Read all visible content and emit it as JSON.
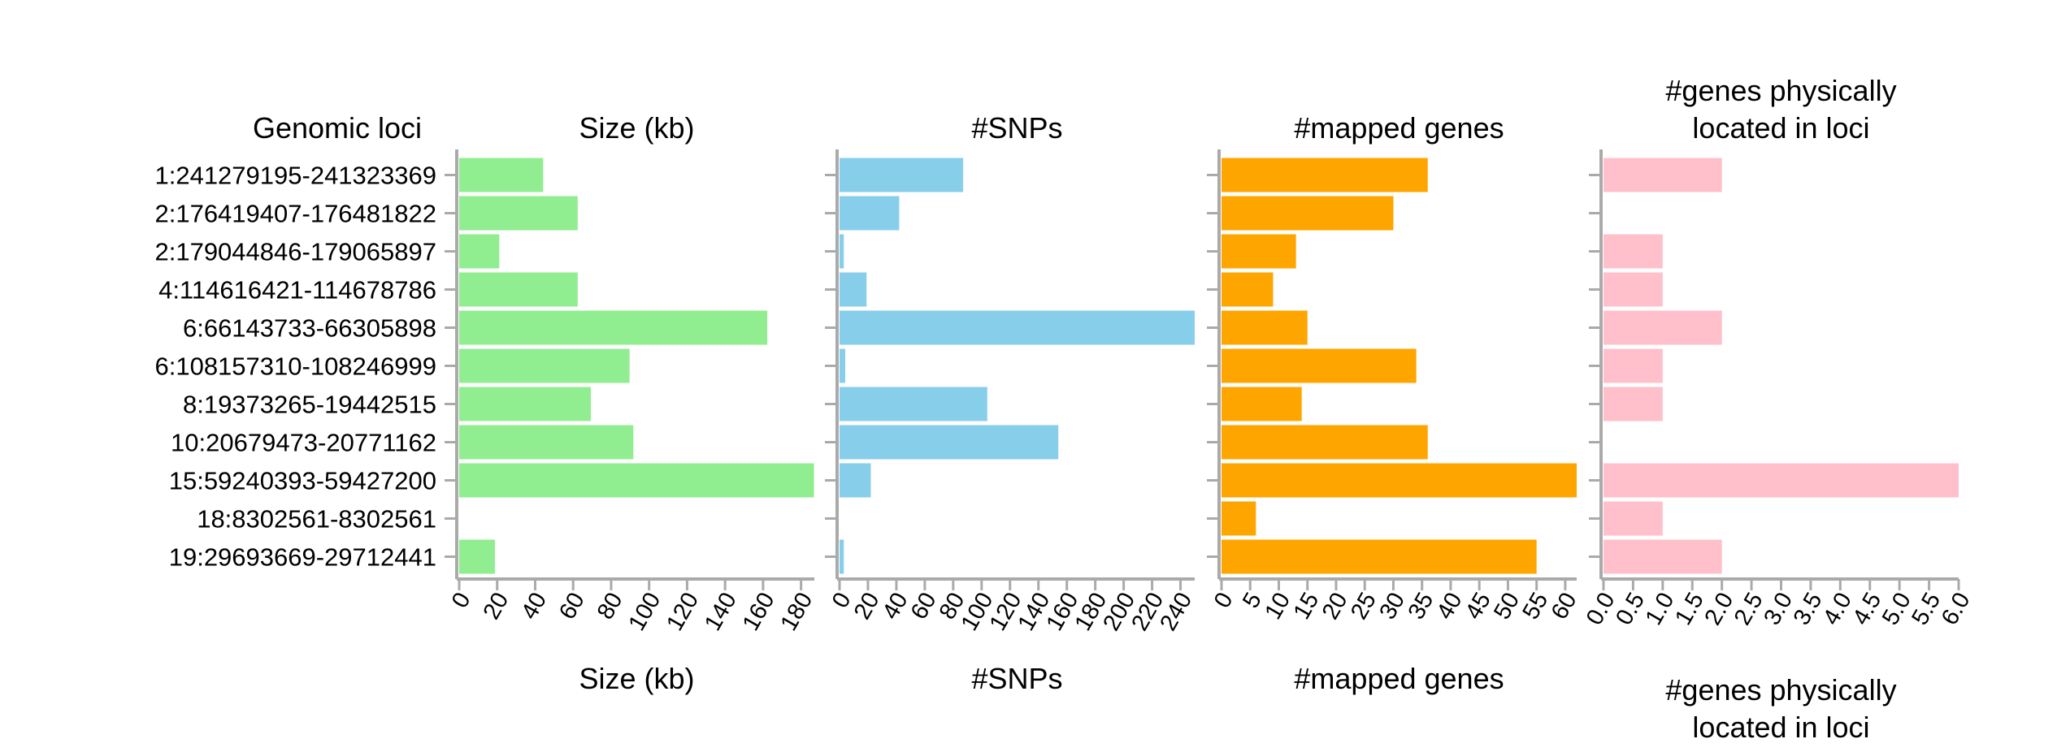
{
  "chart_data": {
    "type": "bar",
    "orientation": "horizontal",
    "row_header": "Genomic loci",
    "categories": [
      "1:241279195-241323369",
      "2:176419407-176481822",
      "2:179044846-179065897",
      "4:114616421-114678786",
      "6:66143733-66305898",
      "6:108157310-108246999",
      "8:19373265-19442515",
      "10:20679473-20771162",
      "15:59240393-59427200",
      "18:8302561-8302561",
      "19:29693669-29712441"
    ],
    "panels": [
      {
        "name": "Size (kb)",
        "title": "Size (kb)",
        "xlabel": "Size (kb)",
        "color": "#90ee90",
        "xlim": [
          0,
          187
        ],
        "ticks": [
          "0",
          "20",
          "40",
          "60",
          "80",
          "100",
          "120",
          "140",
          "160",
          "180"
        ],
        "tick_values": [
          0,
          20,
          40,
          60,
          80,
          100,
          120,
          140,
          160,
          180
        ],
        "values": [
          44.2,
          62.4,
          21.1,
          62.4,
          162.2,
          89.7,
          69.3,
          91.7,
          186.8,
          0,
          18.8
        ]
      },
      {
        "name": "#SNPs",
        "title": "#SNPs",
        "xlabel": "#SNPs",
        "color": "#87ceeb",
        "xlim": [
          0,
          250
        ],
        "ticks": [
          "0",
          "20",
          "40",
          "60",
          "80",
          "100",
          "120",
          "140",
          "160",
          "180",
          "200",
          "220",
          "240"
        ],
        "tick_values": [
          0,
          20,
          40,
          60,
          80,
          100,
          120,
          140,
          160,
          180,
          200,
          220,
          240
        ],
        "values": [
          87,
          42,
          3,
          19,
          250,
          4,
          104,
          154,
          22,
          0,
          3
        ]
      },
      {
        "name": "#mapped genes",
        "title": "#mapped genes",
        "xlabel": "#mapped genes",
        "color": "#ffa500",
        "xlim": [
          0,
          62
        ],
        "ticks": [
          "0",
          "5",
          "10",
          "15",
          "20",
          "25",
          "30",
          "35",
          "40",
          "45",
          "50",
          "55",
          "60"
        ],
        "tick_values": [
          0,
          5,
          10,
          15,
          20,
          25,
          30,
          35,
          40,
          45,
          50,
          55,
          60
        ],
        "values": [
          36,
          30,
          13,
          9,
          15,
          34,
          14,
          36,
          62,
          6,
          55
        ]
      },
      {
        "name": "#genes physically located in loci",
        "title": [
          "#genes physically",
          "located in loci"
        ],
        "xlabel": [
          "#genes physically",
          "located in loci"
        ],
        "color": "#ffc0cb",
        "xlim": [
          0,
          6
        ],
        "ticks": [
          "0.0",
          "0.5",
          "1.0",
          "1.5",
          "2.0",
          "2.5",
          "3.0",
          "3.5",
          "4.0",
          "4.5",
          "5.0",
          "5.5",
          "6.0"
        ],
        "tick_values": [
          0,
          0.5,
          1,
          1.5,
          2,
          2.5,
          3,
          3.5,
          4,
          4.5,
          5,
          5.5,
          6
        ],
        "values": [
          2,
          0,
          1,
          1,
          2,
          1,
          1,
          0,
          6,
          1,
          2
        ]
      }
    ],
    "grid": false,
    "legend": "none"
  }
}
